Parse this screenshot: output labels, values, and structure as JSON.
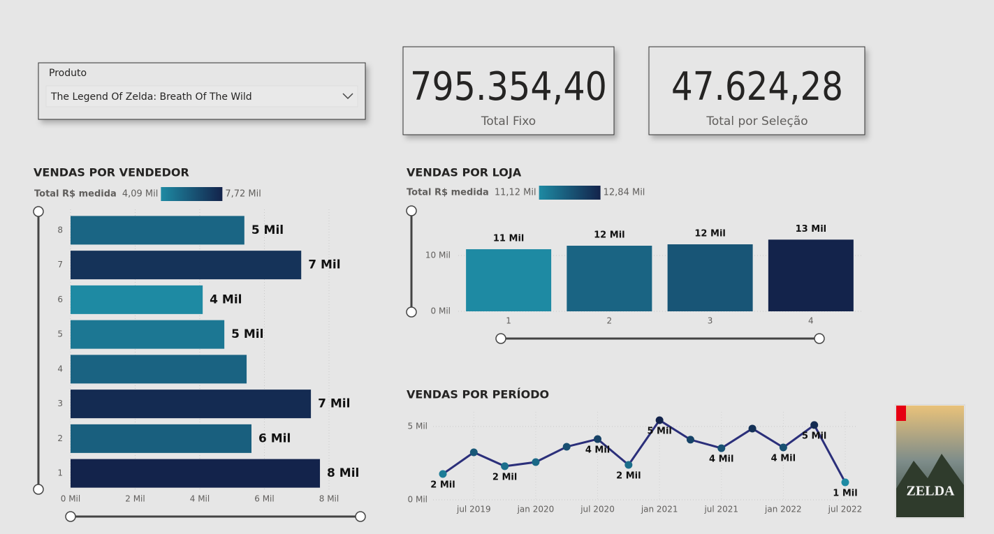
{
  "slicer": {
    "label": "Produto",
    "value": "The Legend Of Zelda: Breath Of The Wild"
  },
  "cards": [
    {
      "value": "795.354,40",
      "label": "Total Fixo"
    },
    {
      "value": "47.624,28",
      "label": "Total por Seleção"
    }
  ],
  "cover": {
    "text": "ZELDA"
  },
  "chart_data": [
    {
      "type": "hbar",
      "title": "VENDAS POR VENDEDOR",
      "legend": {
        "label": "Total R$ medida",
        "min": {
          "value": 4.09,
          "label": "4,09 Mil"
        },
        "max": {
          "value": 7.72,
          "label": "7,72 Mil"
        },
        "color_min": "#1e8aa3",
        "color_max": "#13234b"
      },
      "categories": [
        "8",
        "7",
        "6",
        "5",
        "4",
        "3",
        "2",
        "1"
      ],
      "values": [
        5.38,
        7.14,
        4.09,
        4.76,
        5.45,
        7.44,
        5.6,
        7.72
      ],
      "value_labels": [
        "5 Mil",
        "7 Mil",
        "4 Mil",
        "5 Mil",
        null,
        "7 Mil",
        "6 Mil",
        "8 Mil"
      ],
      "xlim": [
        0,
        8
      ],
      "xticks": [
        {
          "value": 0,
          "label": "0 Mil"
        },
        {
          "value": 2,
          "label": "2 Mil"
        },
        {
          "value": 4,
          "label": "4 Mil"
        },
        {
          "value": 6,
          "label": "6 Mil"
        },
        {
          "value": 8,
          "label": "8 Mil"
        }
      ],
      "grid": true
    },
    {
      "type": "vbar",
      "title": "VENDAS POR LOJA",
      "legend": {
        "label": "Total R$ medida",
        "min": {
          "value": 11.12,
          "label": "11,12 Mil"
        },
        "max": {
          "value": 12.84,
          "label": "12,84 Mil"
        },
        "color_min": "#1e8aa3",
        "color_max": "#13234b"
      },
      "categories": [
        "1",
        "2",
        "3",
        "4"
      ],
      "values": [
        11.12,
        11.75,
        12.0,
        12.84
      ],
      "value_labels": [
        "11 Mil",
        "12 Mil",
        "12 Mil",
        "13 Mil"
      ],
      "ylim": [
        0,
        18
      ],
      "yticks": [
        {
          "value": 0,
          "label": "0 Mil"
        },
        {
          "value": 10,
          "label": "10 Mil"
        }
      ],
      "grid": true
    },
    {
      "type": "line",
      "title": "VENDAS POR PERÍODO",
      "color": "#2b2f7a",
      "marker_color_min": "#1e8aa3",
      "marker_color_max": "#13234b",
      "categories": [
        null,
        "jul 2019",
        null,
        "jan 2020",
        null,
        "jul 2020",
        null,
        "jan 2021",
        null,
        "jul 2021",
        null,
        "jan 2022",
        null,
        "jul 2022"
      ],
      "values": [
        1.76,
        3.24,
        2.29,
        2.57,
        3.62,
        4.14,
        2.38,
        5.43,
        4.1,
        3.52,
        4.86,
        3.57,
        5.1,
        1.19
      ],
      "value_labels": [
        "2 Mil",
        null,
        "2 Mil",
        null,
        null,
        "4 Mil",
        "2 Mil",
        "5 Mil",
        null,
        "4 Mil",
        null,
        "4 Mil",
        "5 Mil",
        "1 Mil"
      ],
      "ylim": [
        0,
        6
      ],
      "yticks": [
        {
          "value": 0,
          "label": "0 Mil"
        },
        {
          "value": 5,
          "label": "5 Mil"
        }
      ],
      "grid": true
    }
  ]
}
